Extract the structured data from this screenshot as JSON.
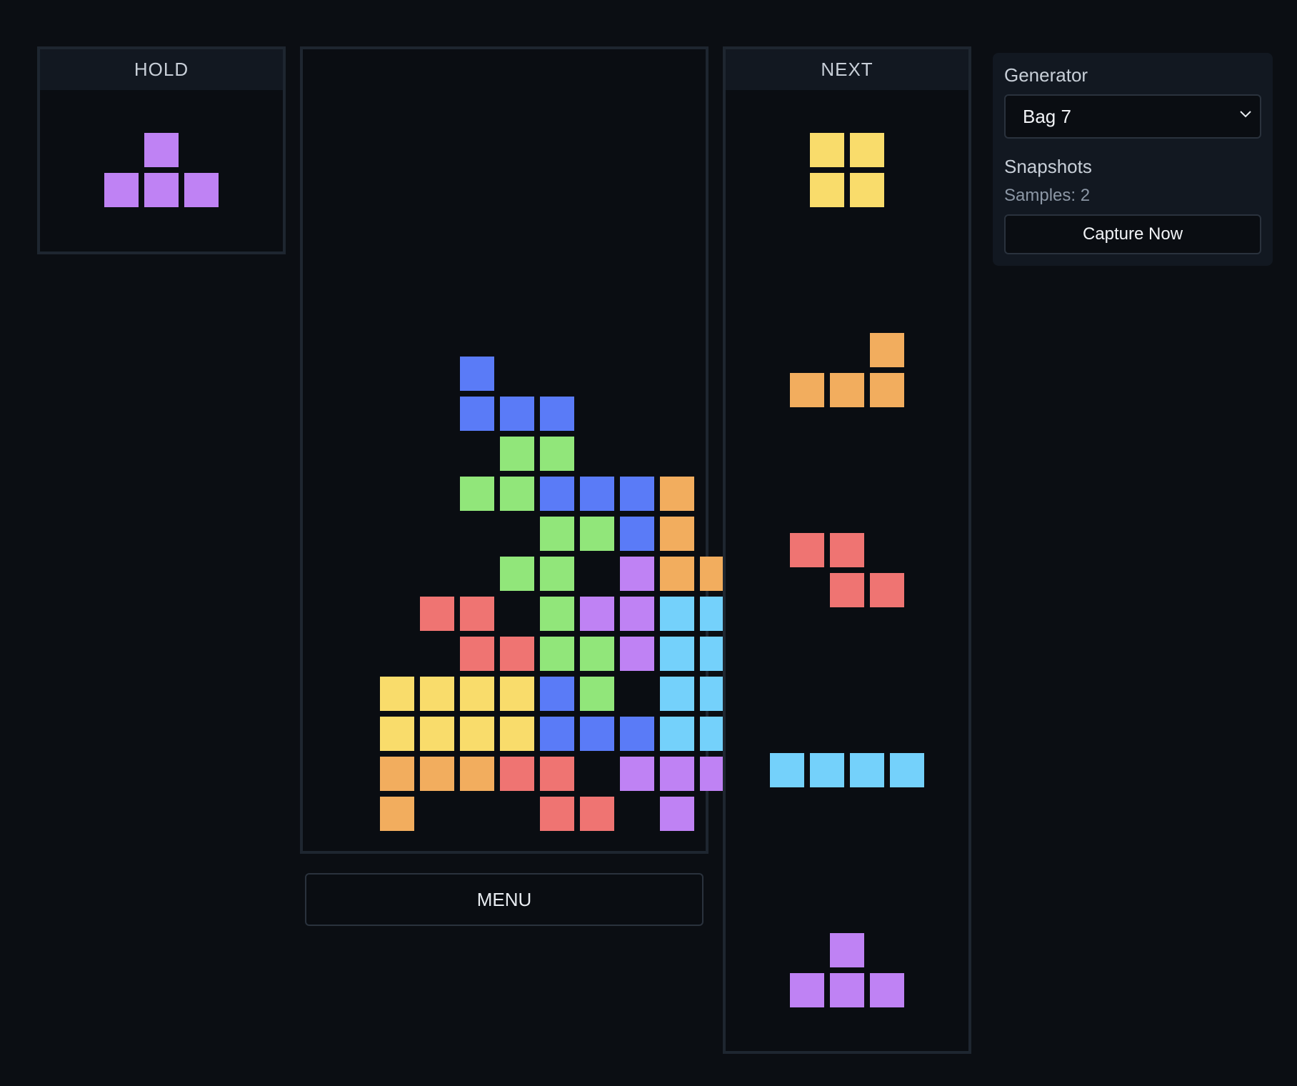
{
  "colors": {
    "I": "#74d1fb",
    "O": "#f9dc6b",
    "T": "#bf82f4",
    "S": "#91e67a",
    "Z": "#ef7472",
    "L": "#f2ad5e",
    "J": "#5a7bf7"
  },
  "hold": {
    "title": "HOLD",
    "piece": "T"
  },
  "next": {
    "title": "NEXT",
    "queue": [
      "O",
      "L",
      "Z",
      "I",
      "T"
    ]
  },
  "board": {
    "cols": 10,
    "rows": 20,
    "grid": [
      "..........",
      "..........",
      "..........",
      "..........",
      "..........",
      "..........",
      "..........",
      "..........",
      "...J......",
      "...JJJ....",
      "....SS....",
      "...SSJJJL.",
      ".....SSJL.",
      "....SS.TLL",
      "..ZZ.STTII",
      "...ZZSSTII",
      ".OOOOJS.II",
      ".OOOOJJJII",
      ".LLLZZ.TTT",
      ".L...ZZ.T."
    ]
  },
  "menu_button": {
    "label": "MENU"
  },
  "side": {
    "generator_label": "Generator",
    "generator_value": "Bag 7",
    "snapshots_label": "Snapshots",
    "samples_text": "Samples: 2",
    "capture_label": "Capture Now"
  }
}
